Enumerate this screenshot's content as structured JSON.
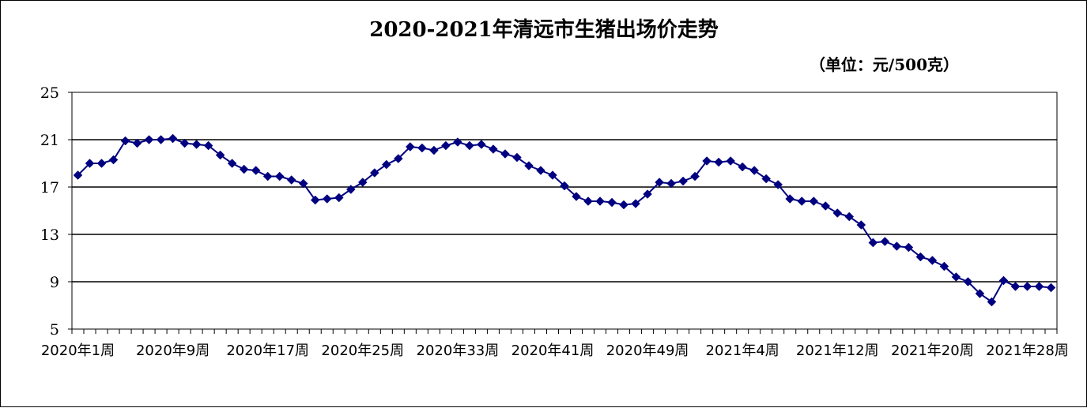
{
  "chart_data": {
    "type": "line",
    "title": "2020-2021年清远市生猪出场价走势",
    "unit_note": "（单位：元/500克）",
    "xlabel": "",
    "ylabel": "",
    "ylim": [
      5,
      25
    ],
    "y_ticks": [
      5,
      9,
      13,
      17,
      21,
      25
    ],
    "grid": true,
    "legend": "none",
    "x_tick_labels": [
      "2020年1周",
      "2020年9周",
      "2020年17周",
      "2020年25周",
      "2020年33周",
      "2020年41周",
      "2020年49周",
      "2021年4周",
      "2021年12周",
      "2021年20周",
      "2021年28周"
    ],
    "x_tick_label_indices": [
      0,
      8,
      16,
      24,
      32,
      40,
      48,
      56,
      64,
      72,
      80
    ],
    "series": [
      {
        "color": "#000080",
        "marker": "diamond",
        "values": [
          18.0,
          19.0,
          19.0,
          19.3,
          20.9,
          20.7,
          21.0,
          21.0,
          21.1,
          20.7,
          20.6,
          20.5,
          19.7,
          19.0,
          18.5,
          18.4,
          17.9,
          17.9,
          17.6,
          17.3,
          15.9,
          16.0,
          16.1,
          16.8,
          17.4,
          18.2,
          18.9,
          19.4,
          20.4,
          20.3,
          20.1,
          20.5,
          20.8,
          20.5,
          20.6,
          20.2,
          19.8,
          19.5,
          18.8,
          18.4,
          18.0,
          17.1,
          16.2,
          15.8,
          15.8,
          15.7,
          15.5,
          15.6,
          16.4,
          17.4,
          17.3,
          17.5,
          17.9,
          19.2,
          19.1,
          19.2,
          18.7,
          18.4,
          17.7,
          17.2,
          16.0,
          15.8,
          15.8,
          15.4,
          14.8,
          14.5,
          13.8,
          12.3,
          12.4,
          12.0,
          11.9,
          11.1,
          10.8,
          10.3,
          9.4,
          9.0,
          8.0,
          7.3,
          9.1,
          8.6,
          8.6,
          8.6,
          8.5
        ]
      }
    ]
  }
}
